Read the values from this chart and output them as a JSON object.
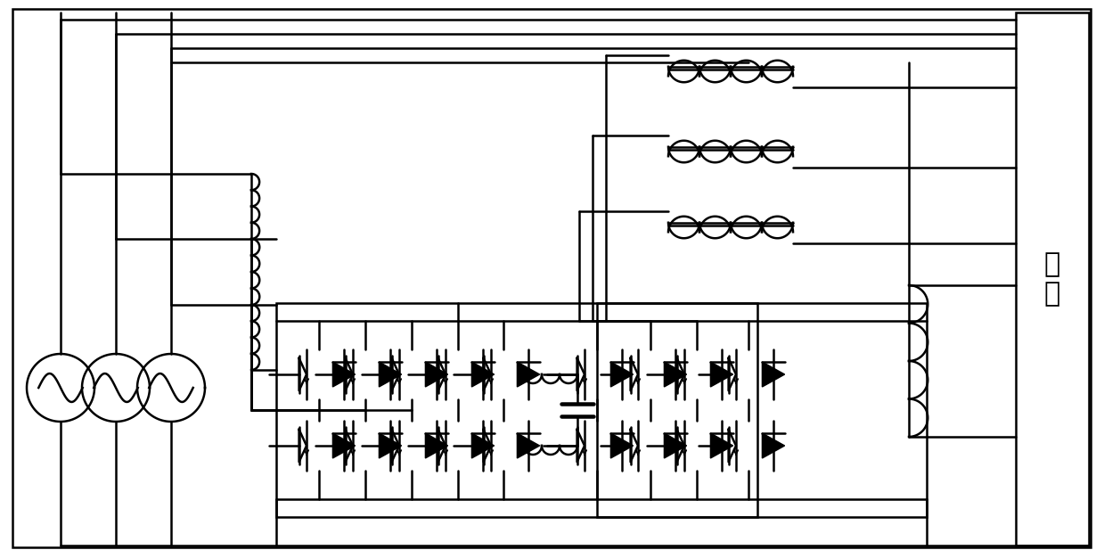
{
  "fig_width": 12.39,
  "fig_height": 6.26,
  "dpi": 100,
  "bg_color": "#ffffff",
  "lc": "#000000",
  "lw": 1.8
}
